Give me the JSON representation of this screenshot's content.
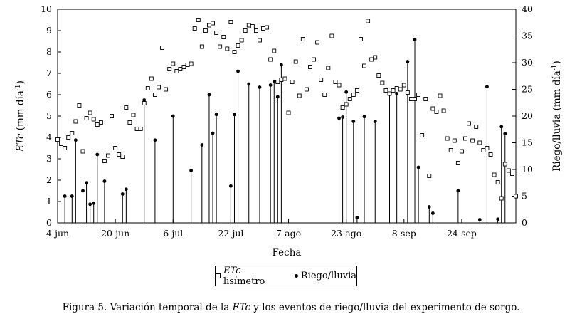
{
  "chart_data": {
    "type": "scatter",
    "xlabel": "Fecha",
    "ylabel_left": "ETc (mm día⁻¹)",
    "ylabel_left_italic": "ETc",
    "ylabel_left_rest": " (mm día",
    "ylabel_left_sup": "-1",
    "ylabel_left_close": ")",
    "ylabel_right": "Riego/lluvia (mm día⁻¹)",
    "ylabel_right_main": "Riego/lluvia (mm día",
    "ylabel_right_sup": "-1",
    "ylabel_right_close": ")",
    "x_ticks": [
      "4-jun",
      "20-jun",
      "6-jul",
      "22-jul",
      "7-ago",
      "23-ago",
      "8-sep",
      "24-sep"
    ],
    "x_range_days": [
      "4-jun",
      "8-oct"
    ],
    "ylim_left": [
      0,
      10
    ],
    "ylim_right": [
      0,
      40
    ],
    "left_ticks": [
      0,
      1,
      2,
      3,
      4,
      5,
      6,
      7,
      8,
      9,
      10
    ],
    "right_ticks": [
      0,
      5,
      10,
      15,
      20,
      25,
      30,
      35,
      40
    ],
    "series": [
      {
        "name": "ETc lisímetro",
        "marker": "open-square",
        "axis": "left",
        "points": [
          [
            "4-jun",
            3.9
          ],
          [
            "5-jun",
            3.7
          ],
          [
            "6-jun",
            3.5
          ],
          [
            "7-jun",
            4.0
          ],
          [
            "8-jun",
            4.2
          ],
          [
            "9-jun",
            4.75
          ],
          [
            "10-jun",
            5.5
          ],
          [
            "11-jun",
            3.35
          ],
          [
            "12-jun",
            4.9
          ],
          [
            "13-jun",
            5.15
          ],
          [
            "14-jun",
            4.85
          ],
          [
            "15-jun",
            4.6
          ],
          [
            "16-jun",
            4.7
          ],
          [
            "17-jun",
            2.9
          ],
          [
            "18-jun",
            3.15
          ],
          [
            "19-jun",
            5.0
          ],
          [
            "20-jun",
            3.5
          ],
          [
            "21-jun",
            3.2
          ],
          [
            "22-jun",
            3.1
          ],
          [
            "23-jun",
            5.4
          ],
          [
            "24-jun",
            4.7
          ],
          [
            "25-jun",
            5.05
          ],
          [
            "26-jun",
            4.4
          ],
          [
            "27-jun",
            4.4
          ],
          [
            "28-jun",
            5.6
          ],
          [
            "29-jun",
            6.3
          ],
          [
            "30-jun",
            6.75
          ],
          [
            "1-jul",
            6.0
          ],
          [
            "2-jul",
            6.35
          ],
          [
            "3-jul",
            8.2
          ],
          [
            "4-jul",
            6.25
          ],
          [
            "5-jul",
            7.2
          ],
          [
            "6-jul",
            7.45
          ],
          [
            "7-jul",
            7.1
          ],
          [
            "8-jul",
            7.2
          ],
          [
            "9-jul",
            7.3
          ],
          [
            "10-jul",
            7.4
          ],
          [
            "11-jul",
            7.45
          ],
          [
            "12-jul",
            9.1
          ],
          [
            "13-jul",
            9.5
          ],
          [
            "14-jul",
            8.25
          ],
          [
            "15-jul",
            9.0
          ],
          [
            "16-jul",
            9.25
          ],
          [
            "17-jul",
            9.35
          ],
          [
            "18-jul",
            8.9
          ],
          [
            "19-jul",
            8.25
          ],
          [
            "20-jul",
            8.7
          ],
          [
            "21-jul",
            8.15
          ],
          [
            "22-jul",
            9.4
          ],
          [
            "23-jul",
            8.0
          ],
          [
            "24-jul",
            8.3
          ],
          [
            "25-jul",
            8.55
          ],
          [
            "26-jul",
            9.0
          ],
          [
            "27-jul",
            9.25
          ],
          [
            "28-jul",
            9.2
          ],
          [
            "29-jul",
            9.0
          ],
          [
            "30-jul",
            8.55
          ],
          [
            "31-jul",
            9.1
          ],
          [
            "1-ago",
            9.15
          ],
          [
            "2-ago",
            7.65
          ],
          [
            "3-ago",
            8.05
          ],
          [
            "4-ago",
            6.6
          ],
          [
            "5-ago",
            6.7
          ],
          [
            "6-ago",
            6.75
          ],
          [
            "7-ago",
            5.15
          ],
          [
            "8-ago",
            6.6
          ],
          [
            "9-ago",
            7.55
          ],
          [
            "10-ago",
            5.95
          ],
          [
            "11-ago",
            8.6
          ],
          [
            "12-ago",
            6.25
          ],
          [
            "13-ago",
            7.3
          ],
          [
            "14-ago",
            7.65
          ],
          [
            "15-ago",
            8.45
          ],
          [
            "16-ago",
            6.7
          ],
          [
            "17-ago",
            6.0
          ],
          [
            "18-ago",
            7.25
          ],
          [
            "19-ago",
            8.75
          ],
          [
            "20-ago",
            6.6
          ],
          [
            "21-ago",
            6.45
          ],
          [
            "22-ago",
            5.4
          ],
          [
            "23-ago",
            5.55
          ],
          [
            "24-ago",
            5.8
          ],
          [
            "25-ago",
            6.0
          ],
          [
            "26-ago",
            6.2
          ],
          [
            "27-ago",
            8.6
          ],
          [
            "28-ago",
            7.35
          ],
          [
            "29-ago",
            9.45
          ],
          [
            "30-ago",
            7.65
          ],
          [
            "31-ago",
            7.75
          ],
          [
            "1-sep",
            6.9
          ],
          [
            "2-sep",
            6.55
          ],
          [
            "3-sep",
            6.2
          ],
          [
            "4-sep",
            6.05
          ],
          [
            "5-sep",
            6.2
          ],
          [
            "6-sep",
            6.3
          ],
          [
            "7-sep",
            6.25
          ],
          [
            "8-sep",
            6.45
          ],
          [
            "9-sep",
            6.1
          ],
          [
            "10-sep",
            5.8
          ],
          [
            "11-sep",
            5.8
          ],
          [
            "12-sep",
            6.0
          ],
          [
            "13-sep",
            4.1
          ],
          [
            "14-sep",
            5.8
          ],
          [
            "15-sep",
            2.2
          ],
          [
            "16-sep",
            5.35
          ],
          [
            "17-sep",
            5.2
          ],
          [
            "18-sep",
            5.95
          ],
          [
            "19-sep",
            5.25
          ],
          [
            "20-sep",
            3.95
          ],
          [
            "21-sep",
            3.4
          ],
          [
            "22-sep",
            3.85
          ],
          [
            "23-sep",
            2.8
          ],
          [
            "24-sep",
            3.35
          ],
          [
            "25-sep",
            3.95
          ],
          [
            "26-sep",
            4.65
          ],
          [
            "27-sep",
            3.85
          ],
          [
            "28-sep",
            4.5
          ],
          [
            "29-sep",
            3.75
          ],
          [
            "30-sep",
            3.4
          ],
          [
            "1-oct",
            3.5
          ],
          [
            "2-oct",
            3.2
          ],
          [
            "3-oct",
            2.25
          ],
          [
            "4-oct",
            1.9
          ],
          [
            "5-oct",
            1.15
          ],
          [
            "6-oct",
            2.75
          ],
          [
            "7-oct",
            2.45
          ],
          [
            "8-oct",
            2.3
          ],
          [
            "9-oct",
            1.25
          ]
        ]
      },
      {
        "name": "Riego/lluvia",
        "marker": "filled-circle-with-stem",
        "axis": "right",
        "points": [
          [
            "6-jun",
            5.0
          ],
          [
            "8-jun",
            5.0
          ],
          [
            "9-jun",
            15.5
          ],
          [
            "11-jun",
            6.0
          ],
          [
            "12-jun",
            7.5
          ],
          [
            "13-jun",
            3.5
          ],
          [
            "14-jun",
            3.7
          ],
          [
            "15-jun",
            12.8
          ],
          [
            "17-jun",
            7.8
          ],
          [
            "22-jun",
            5.4
          ],
          [
            "23-jun",
            6.3
          ],
          [
            "28-jun",
            23.0
          ],
          [
            "1-jul",
            15.5
          ],
          [
            "6-jul",
            20.0
          ],
          [
            "11-jul",
            9.8
          ],
          [
            "14-jul",
            14.6
          ],
          [
            "16-jul",
            24.0
          ],
          [
            "17-jul",
            16.8
          ],
          [
            "18-jul",
            20.3
          ],
          [
            "22-jul",
            6.9
          ],
          [
            "23-jul",
            20.3
          ],
          [
            "24-jul",
            28.4
          ],
          [
            "27-jul",
            26.0
          ],
          [
            "30-jul",
            25.4
          ],
          [
            "2-ago",
            25.8
          ],
          [
            "3-ago",
            26.5
          ],
          [
            "4-ago",
            23.6
          ],
          [
            "5-ago",
            29.6
          ],
          [
            "21-ago",
            19.6
          ],
          [
            "22-ago",
            19.8
          ],
          [
            "23-ago",
            24.5
          ],
          [
            "25-ago",
            19.0
          ],
          [
            "26-ago",
            1.0
          ],
          [
            "28-ago",
            19.9
          ],
          [
            "31-ago",
            19.0
          ],
          [
            "4-sep",
            24.1
          ],
          [
            "6-sep",
            24.2
          ],
          [
            "9-sep",
            30.2
          ],
          [
            "11-sep",
            34.3
          ],
          [
            "12-sep",
            10.4
          ],
          [
            "15-sep",
            3.0
          ],
          [
            "16-sep",
            1.8
          ],
          [
            "23-sep",
            6.0
          ],
          [
            "29-sep",
            0.6
          ],
          [
            "1-oct",
            25.5
          ],
          [
            "4-oct",
            0.7
          ],
          [
            "5-oct",
            18.0
          ],
          [
            "6-oct",
            16.7
          ]
        ]
      }
    ],
    "legend": {
      "placement": "bottom-center",
      "items": [
        "ETc lisímetro",
        "Riego/lluvia"
      ],
      "item1_italic": "ETc",
      "item1_rest": " lisímetro"
    },
    "grid": false
  },
  "caption": {
    "prefix": "Figura 5. Variación temporal de la ",
    "italic": "ETc",
    "suffix": " y los eventos de riego/lluvia del experimento de sorgo."
  }
}
